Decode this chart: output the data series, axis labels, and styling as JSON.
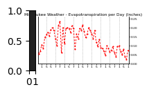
{
  "title": "Milwaukee Weather - Evapotranspiration per Day (Inches)",
  "line_color": "#ff0000",
  "background_color": "#ffffff",
  "grid_color": "#888888",
  "ylim": [
    0.0,
    0.26
  ],
  "yticks": [
    0.0,
    0.05,
    0.1,
    0.15,
    0.2,
    0.25
  ],
  "ytick_labels": [
    "0.00",
    "0.05",
    "0.10",
    "0.15",
    "0.20",
    "0.25"
  ],
  "values": [
    0.055,
    0.07,
    0.105,
    0.085,
    0.145,
    0.16,
    0.175,
    0.155,
    0.19,
    0.2,
    0.185,
    0.14,
    0.1,
    0.21,
    0.235,
    0.06,
    0.2,
    0.11,
    0.195,
    0.2,
    0.195,
    0.175,
    0.21,
    0.195,
    0.08,
    0.165,
    0.14,
    0.195,
    0.185,
    0.215,
    0.18,
    0.145,
    0.165,
    0.2,
    0.185,
    0.165,
    0.14,
    0.185,
    0.12,
    0.095,
    0.135,
    0.09,
    0.085,
    0.07,
    0.045,
    0.1,
    0.085,
    0.065,
    0.075,
    0.095,
    0.06,
    0.04,
    0.095,
    0.1,
    0.07,
    0.05,
    0.08,
    0.04,
    0.025,
    0.075
  ],
  "n_points": 60,
  "vgrid_x": [
    5,
    11,
    17,
    23,
    29,
    35,
    41,
    47,
    53
  ],
  "xtick_positions": [
    2,
    5,
    8,
    11,
    14,
    17,
    20,
    23,
    26,
    29,
    32,
    35,
    38,
    41,
    44,
    47,
    50,
    53,
    56,
    59
  ],
  "xtick_labels": [
    "1",
    "5",
    "5",
    "7",
    "7",
    "1",
    "5",
    "7",
    "1",
    "5",
    "7",
    "1",
    "5",
    "7",
    "1",
    "5",
    "7",
    "1",
    "5",
    "1"
  ],
  "title_fontsize": 4.2,
  "tick_fontsize": 3.2,
  "left_bar_color": "#222222",
  "left_bar_width": 0.06
}
